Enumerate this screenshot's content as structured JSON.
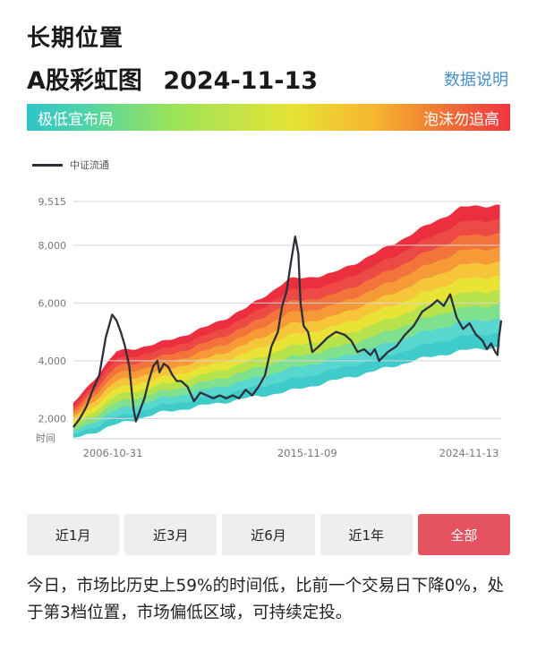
{
  "header": {
    "section_title": "长期位置",
    "chart_name": "A股彩虹图",
    "date": "2024-11-13",
    "data_link": "数据说明"
  },
  "rainbow_scale": {
    "low_label": "极低宜布局",
    "high_label": "泡沫勿追高"
  },
  "tabs": [
    {
      "label": "近1月",
      "active": false
    },
    {
      "label": "近3月",
      "active": false
    },
    {
      "label": "近6月",
      "active": false
    },
    {
      "label": "近1年",
      "active": false
    },
    {
      "label": "全部",
      "active": true
    }
  ],
  "summary_text": "今日，市场比历史上59%的时间低，比前一个交易日下降0%，处于第3档位置，市场偏低区域，可持续定投。",
  "colors": {
    "accent": "#e4535f",
    "link": "#4a90c8",
    "line": "#2d2f3a",
    "bands": [
      "#3ecbc9",
      "#58d7cf",
      "#7fe08d",
      "#b6e24c",
      "#e9e336",
      "#f6c53a",
      "#f59a37",
      "#f2743a",
      "#ee4a45",
      "#ec2f3f"
    ]
  },
  "chart_data": {
    "type": "area",
    "xlabel": "时间",
    "ylabel": "",
    "ylim": [
      1300,
      9515
    ],
    "yticks": [
      {
        "value": 2000,
        "label": "2,000"
      },
      {
        "value": 4000,
        "label": "4,000"
      },
      {
        "value": 6000,
        "label": "6,000"
      },
      {
        "value": 8000,
        "label": "8,000"
      },
      {
        "value": 9515,
        "label": "9,515"
      }
    ],
    "xticks": [
      {
        "value": 2006.83,
        "label": "2006-10-31"
      },
      {
        "value": 2015.86,
        "label": "2015-11-09"
      },
      {
        "value": 2024.87,
        "label": "2024-11-13"
      }
    ],
    "xlim": [
      2005.0,
      2024.87
    ],
    "grid": true,
    "legend_position": "top-left",
    "series": [
      {
        "name": "中证流通",
        "type": "line",
        "x": [
          2005.0,
          2005.3,
          2005.6,
          2005.9,
          2006.2,
          2006.5,
          2006.8,
          2007.0,
          2007.2,
          2007.4,
          2007.6,
          2007.7,
          2007.8,
          2007.9,
          2008.1,
          2008.3,
          2008.5,
          2008.7,
          2008.9,
          2009.0,
          2009.2,
          2009.4,
          2009.6,
          2009.8,
          2010.0,
          2010.3,
          2010.6,
          2010.9,
          2011.2,
          2011.5,
          2011.8,
          2012.1,
          2012.4,
          2012.7,
          2013.0,
          2013.3,
          2013.6,
          2013.9,
          2014.2,
          2014.5,
          2014.7,
          2014.9,
          2015.1,
          2015.3,
          2015.45,
          2015.55,
          2015.7,
          2015.9,
          2016.1,
          2016.4,
          2016.8,
          2017.2,
          2017.6,
          2017.9,
          2018.2,
          2018.5,
          2018.8,
          2019.0,
          2019.2,
          2019.6,
          2020.0,
          2020.4,
          2020.8,
          2021.2,
          2021.6,
          2021.9,
          2022.2,
          2022.5,
          2022.8,
          2023.1,
          2023.4,
          2023.7,
          2024.0,
          2024.2,
          2024.4,
          2024.6,
          2024.7,
          2024.75,
          2024.87
        ],
        "values": [
          1700,
          2000,
          2400,
          3000,
          3500,
          4800,
          5600,
          5400,
          5000,
          4500,
          3800,
          3000,
          2300,
          1900,
          2300,
          2700,
          3300,
          3800,
          4000,
          3600,
          3900,
          3800,
          3500,
          3300,
          3300,
          3100,
          2600,
          2900,
          2800,
          2700,
          2800,
          2700,
          2800,
          2700,
          3000,
          2800,
          3100,
          3500,
          4500,
          5000,
          5900,
          6400,
          7400,
          8300,
          7700,
          6000,
          5200,
          5000,
          4300,
          4500,
          4800,
          5000,
          4900,
          4700,
          4300,
          4400,
          4200,
          4400,
          4000,
          4300,
          4500,
          4900,
          5200,
          5700,
          5900,
          6100,
          5900,
          6300,
          5500,
          5100,
          5300,
          4900,
          4700,
          4400,
          4600,
          4300,
          4200,
          4700,
          5400
        ]
      }
    ],
    "rainbow_bands": {
      "x": [
        2005.0,
        2007.0,
        2009.0,
        2011.0,
        2013.0,
        2015.0,
        2017.0,
        2019.0,
        2021.0,
        2023.0,
        2024.87
      ],
      "lower": [
        1300,
        1800,
        2200,
        2450,
        2700,
        2950,
        3300,
        3650,
        4050,
        4350,
        4500
      ],
      "upper": [
        2500,
        4300,
        4600,
        5100,
        5800,
        6800,
        7000,
        7700,
        8500,
        9300,
        9400
      ]
    }
  }
}
